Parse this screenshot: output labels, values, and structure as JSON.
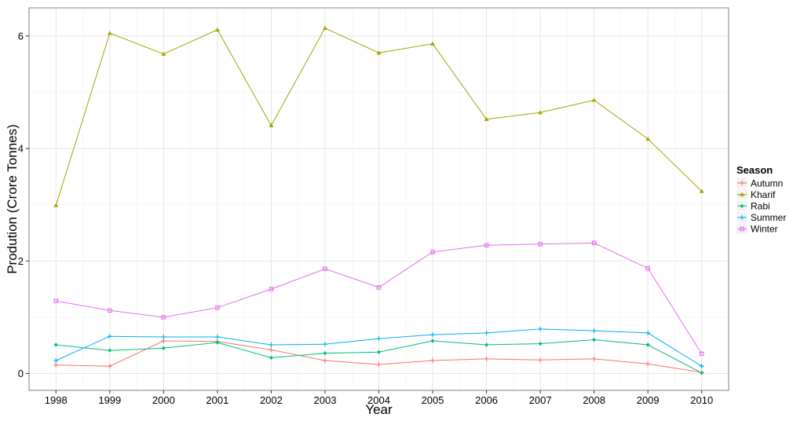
{
  "chart_data": {
    "type": "line",
    "title": "",
    "xlabel": "Year",
    "ylabel": "Prodution (Crore Tonnes)",
    "x": [
      1998,
      1999,
      2000,
      2001,
      2002,
      2003,
      2004,
      2005,
      2006,
      2007,
      2008,
      2009,
      2010
    ],
    "x_ticks": [
      "1998",
      "1999",
      "2000",
      "2001",
      "2002",
      "2003",
      "2004",
      "2005",
      "2006",
      "2007",
      "2008",
      "2009",
      "2010"
    ],
    "y_ticks": [
      "0",
      "2",
      "4",
      "6"
    ],
    "y_tick_values": [
      0,
      2,
      4,
      6
    ],
    "ylim": [
      -0.3,
      6.5
    ],
    "xlim": [
      1997.5,
      2010.5
    ],
    "grid": true,
    "legend": {
      "title": "Season",
      "position": "right"
    },
    "series": [
      {
        "name": "Autumn",
        "color": "#F8766D",
        "marker": "plus",
        "values": [
          0.15,
          0.13,
          0.58,
          0.57,
          0.42,
          0.23,
          0.16,
          0.23,
          0.26,
          0.24,
          0.26,
          0.17,
          0.02
        ]
      },
      {
        "name": "Kharif",
        "color": "#A3A500",
        "marker": "triangle",
        "values": [
          2.99,
          6.05,
          5.68,
          6.11,
          4.41,
          6.14,
          5.7,
          5.86,
          4.52,
          4.64,
          4.86,
          4.17,
          3.24
        ]
      },
      {
        "name": "Rabi",
        "color": "#00BF7D",
        "marker": "diamond",
        "values": [
          0.51,
          0.41,
          0.45,
          0.55,
          0.28,
          0.36,
          0.38,
          0.58,
          0.51,
          0.53,
          0.6,
          0.51,
          0.01
        ]
      },
      {
        "name": "Summer",
        "color": "#00B0F6",
        "marker": "plus",
        "values": [
          0.23,
          0.66,
          0.65,
          0.65,
          0.51,
          0.52,
          0.62,
          0.69,
          0.72,
          0.79,
          0.76,
          0.72,
          0.13
        ]
      },
      {
        "name": "Winter",
        "color": "#E76BF3",
        "marker": "square",
        "values": [
          1.29,
          1.12,
          1.0,
          1.17,
          1.5,
          1.86,
          1.53,
          2.16,
          2.28,
          2.3,
          2.32,
          1.87,
          0.35
        ]
      }
    ]
  }
}
